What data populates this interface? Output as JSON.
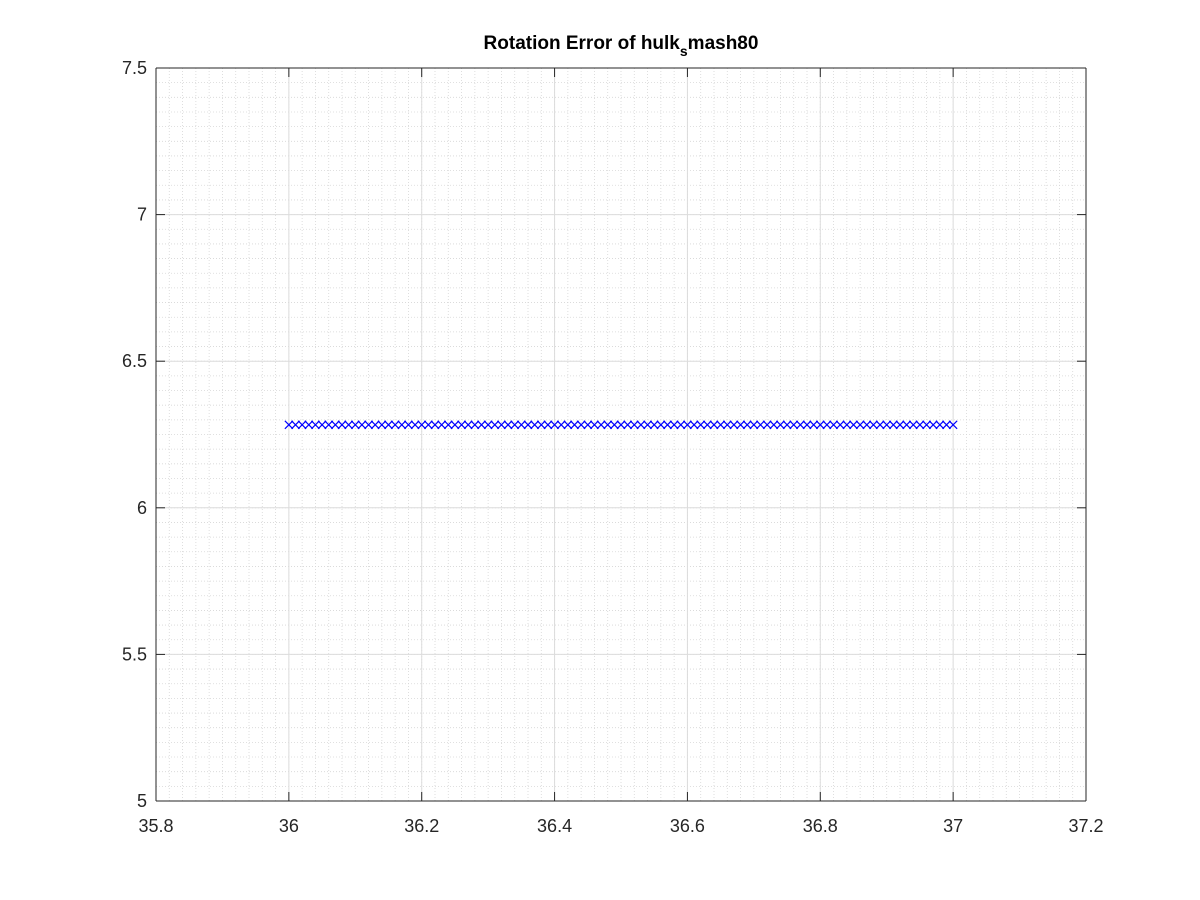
{
  "chart_data": {
    "type": "scatter",
    "title": "Rotation Error of hulk",
    "title_subscript": "s",
    "title_suffix": "mash80",
    "xlabel": "",
    "ylabel": "",
    "xlim": [
      35.8,
      37.2
    ],
    "ylim": [
      5,
      7.5
    ],
    "xticks": [
      35.8,
      36,
      36.2,
      36.4,
      36.6,
      36.8,
      37,
      37.2
    ],
    "xtick_labels": [
      "35.8",
      "36",
      "36.2",
      "36.4",
      "36.6",
      "36.8",
      "37",
      "37.2"
    ],
    "yticks": [
      5,
      5.5,
      6,
      6.5,
      7,
      7.5
    ],
    "ytick_labels": [
      "5",
      "5.5",
      "6",
      "6.5",
      "7",
      "7.5"
    ],
    "grid": true,
    "minor_grid": true,
    "marker": "x",
    "series": [
      {
        "color": "#0000ff",
        "x_start": 36,
        "x_end": 37,
        "x_step": 0.01,
        "y": 6.283
      }
    ]
  }
}
